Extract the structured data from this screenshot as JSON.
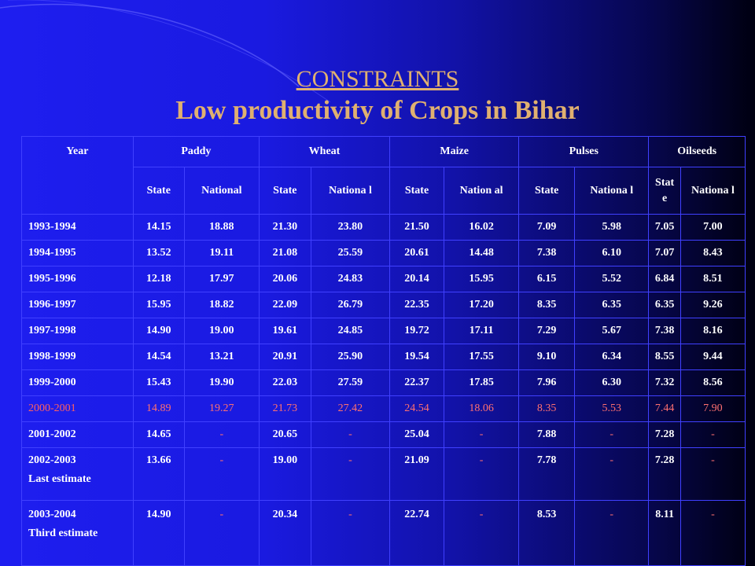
{
  "title": "CONSTRAINTS",
  "subtitle": "Low productivity of Crops in Bihar",
  "table": {
    "year_header": "Year",
    "crops": [
      "Paddy",
      "Wheat",
      "Maize",
      "Pulses",
      "Oilseeds"
    ],
    "subheaders": [
      "State",
      "National",
      "State",
      "Nationa l",
      "State",
      "Nation al",
      "State",
      "Nationa l",
      "Stat e",
      "Nationa l"
    ],
    "rows": [
      {
        "year": "1993-1994",
        "note": "",
        "values": [
          "14.15",
          "18.88",
          "21.30",
          "23.80",
          "21.50",
          "16.02",
          "7.09",
          "5.98",
          "7.05",
          "7.00"
        ]
      },
      {
        "year": "1994-1995",
        "note": "",
        "values": [
          "13.52",
          "19.11",
          "21.08",
          "25.59",
          "20.61",
          "14.48",
          "7.38",
          "6.10",
          "7.07",
          "8.43"
        ]
      },
      {
        "year": "1995-1996",
        "note": "",
        "values": [
          "12.18",
          "17.97",
          "20.06",
          "24.83",
          "20.14",
          "15.95",
          "6.15",
          "5.52",
          "6.84",
          "8.51"
        ]
      },
      {
        "year": "1996-1997",
        "note": "",
        "values": [
          "15.95",
          "18.82",
          "22.09",
          "26.79",
          "22.35",
          "17.20",
          "8.35",
          "6.35",
          "6.35",
          "9.26"
        ]
      },
      {
        "year": "1997-1998",
        "note": "",
        "values": [
          "14.90",
          "19.00",
          "19.61",
          "24.85",
          "19.72",
          "17.11",
          "7.29",
          "5.67",
          "7.38",
          "8.16"
        ]
      },
      {
        "year": "1998-1999",
        "note": "",
        "values": [
          "14.54",
          "13.21",
          "20.91",
          "25.90",
          "19.54",
          "17.55",
          "9.10",
          "6.34",
          "8.55",
          "9.44"
        ]
      },
      {
        "year": "1999-2000",
        "note": "",
        "values": [
          "15.43",
          "19.90",
          "22.03",
          "27.59",
          "22.37",
          "17.85",
          "7.96",
          "6.30",
          "7.32",
          "8.56"
        ]
      },
      {
        "year": "2000-2001",
        "note": "",
        "values": [
          "14.89",
          "19.27",
          "21.73",
          "27.42",
          "24.54",
          "18.06",
          "8.35",
          "5.53",
          "7.44",
          "7.90"
        ]
      },
      {
        "year": "2001-2002",
        "note": "",
        "values": [
          "14.65",
          "-",
          "20.65",
          "-",
          "25.04",
          "-",
          "7.88",
          "-",
          "7.28",
          "-"
        ]
      },
      {
        "year": "2002-2003",
        "note": "Last estimate",
        "values": [
          "13.66",
          "-",
          "19.00",
          "-",
          "21.09",
          "-",
          "7.78",
          "-",
          "7.28",
          "-"
        ]
      },
      {
        "year": "2003-2004",
        "note": "Third estimate",
        "values": [
          "14.90",
          "-",
          "20.34",
          "-",
          "22.74",
          "-",
          "8.53",
          "-",
          "8.11",
          "-"
        ]
      }
    ]
  },
  "colors": {
    "title": "#e0b070",
    "highlight_row": "#ff7070",
    "text": "#ffffff",
    "grid": "#4040ff"
  }
}
